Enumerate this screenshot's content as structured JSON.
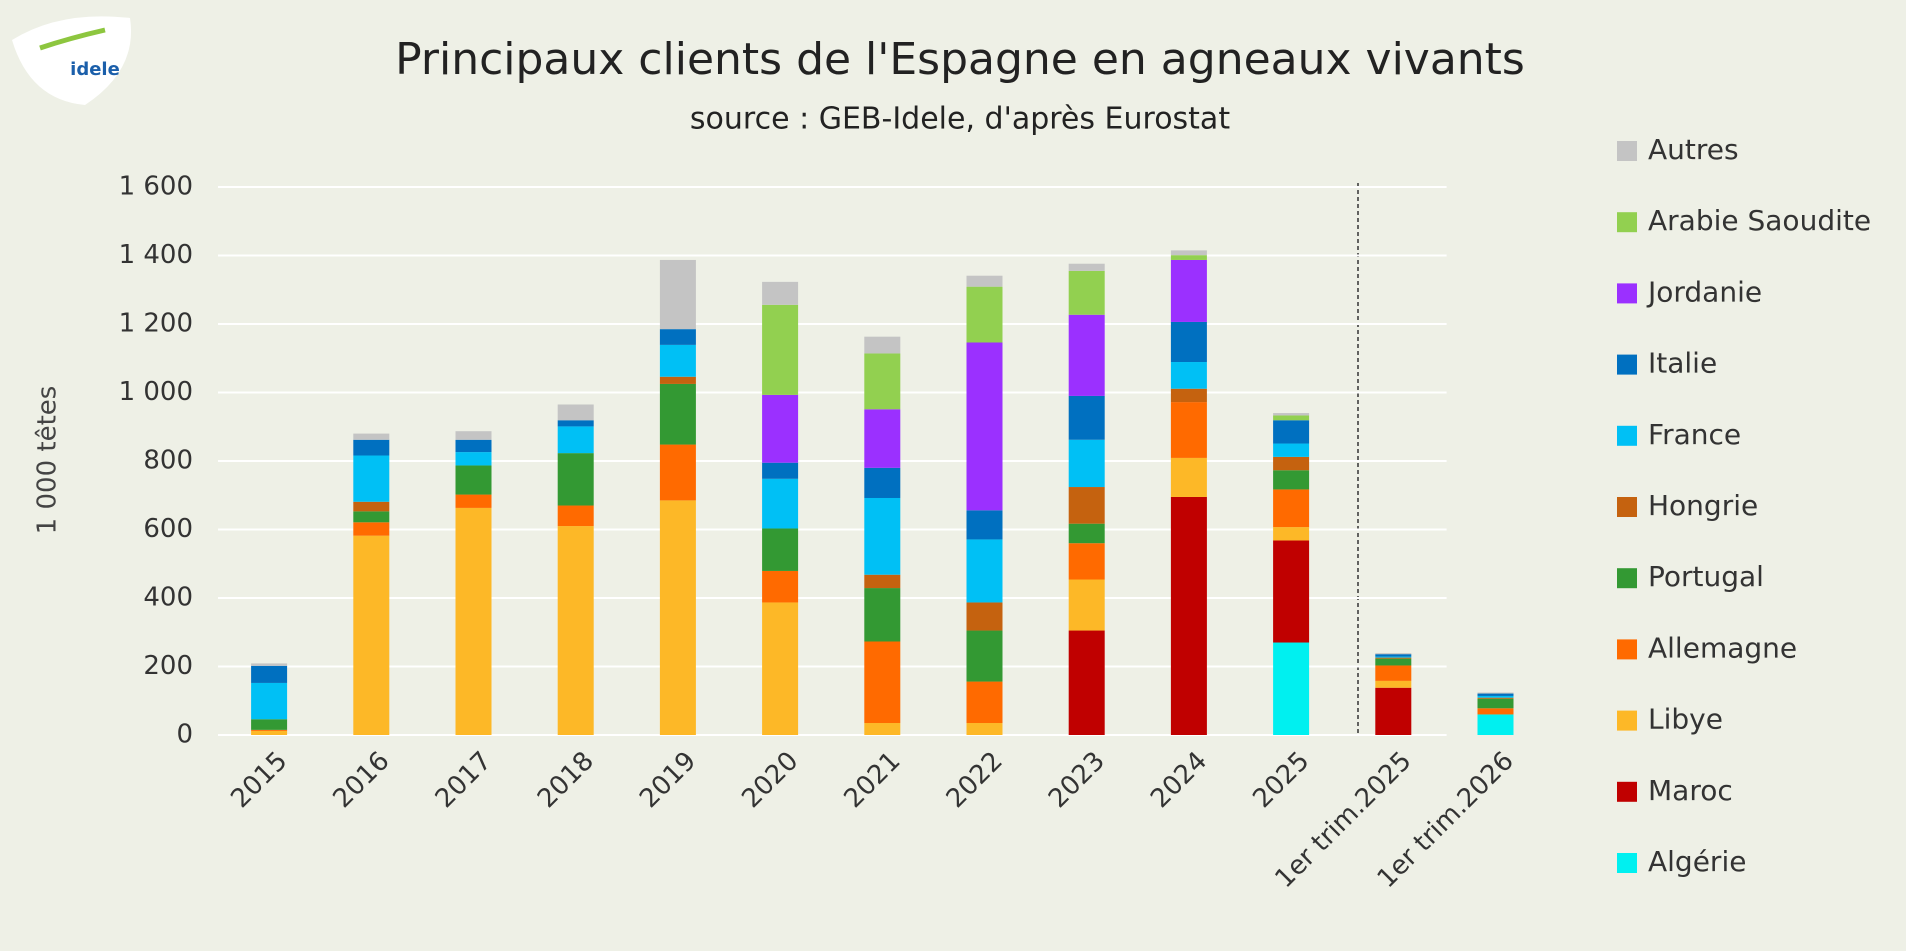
{
  "chart_data": {
    "type": "stacked_bar",
    "title": "Principaux clients de l'Espagne en agneaux vivants",
    "subtitle": "source : GEB-Idele, d'après Eurostat",
    "logo_text": "idele",
    "y_label": "1 000 têtes",
    "categories": [
      "2015",
      "2016",
      "2017",
      "2018",
      "2019",
      "2020",
      "2021",
      "2022",
      "2023",
      "2024",
      "2025",
      "1er trim.2025",
      "1er trim.2026"
    ],
    "ylim": [
      0,
      1600
    ],
    "yticks": [
      0,
      200,
      400,
      600,
      800,
      {
        "value": 1000,
        "label": "1 000"
      },
      {
        "value": 1200,
        "label": "1 200"
      },
      {
        "value": 1400,
        "label": "1 400"
      },
      {
        "value": 1600,
        "label": "1 600"
      }
    ],
    "grid": true,
    "legend": "right",
    "series": [
      {
        "name": "Algérie",
        "color": "#00f0f0",
        "values": [
          0,
          0,
          0,
          0,
          0,
          0,
          0,
          0,
          0,
          0,
          270,
          0,
          60
        ]
      },
      {
        "name": "Maroc",
        "color": "#c00000",
        "values": [
          0,
          0,
          0,
          0,
          0,
          0,
          0,
          0,
          305,
          695,
          298,
          138,
          0
        ]
      },
      {
        "name": "Libye",
        "color": "#fdb827",
        "values": [
          12,
          582,
          663,
          610,
          685,
          387,
          35,
          35,
          149,
          114,
          39,
          20,
          0
        ]
      },
      {
        "name": "Allemagne",
        "color": "#ff6a00",
        "values": [
          3,
          39,
          39,
          60,
          163,
          92,
          238,
          121,
          106,
          163,
          110,
          45,
          18
        ]
      },
      {
        "name": "Portugal",
        "color": "#339933",
        "values": [
          31,
          32,
          85,
          153,
          177,
          124,
          156,
          149,
          57,
          0,
          56,
          20,
          28
        ]
      },
      {
        "name": "Hongrie",
        "color": "#c5620f",
        "values": [
          0,
          28,
          0,
          0,
          21,
          0,
          39,
          82,
          107,
          39,
          39,
          3,
          3
        ]
      },
      {
        "name": "France",
        "color": "#00c0f5",
        "values": [
          106,
          135,
          39,
          78,
          93,
          145,
          224,
          184,
          138,
          78,
          39,
          3,
          5
        ]
      },
      {
        "name": "Italie",
        "color": "#0070c0",
        "values": [
          50,
          46,
          36,
          18,
          46,
          47,
          88,
          85,
          128,
          117,
          68,
          7,
          7
        ]
      },
      {
        "name": "Jordanie",
        "color": "#9b30ff",
        "values": [
          0,
          0,
          0,
          0,
          0,
          198,
          171,
          490,
          237,
          181,
          0,
          0,
          0
        ]
      },
      {
        "name": "Arabie Saoudite",
        "color": "#92d050",
        "values": [
          0,
          0,
          0,
          0,
          0,
          263,
          163,
          163,
          128,
          14,
          14,
          0,
          0
        ]
      },
      {
        "name": "Autres",
        "color": "#c4c4c4",
        "values": [
          7,
          18,
          25,
          46,
          202,
          67,
          49,
          32,
          21,
          14,
          7,
          3,
          3
        ]
      }
    ]
  }
}
